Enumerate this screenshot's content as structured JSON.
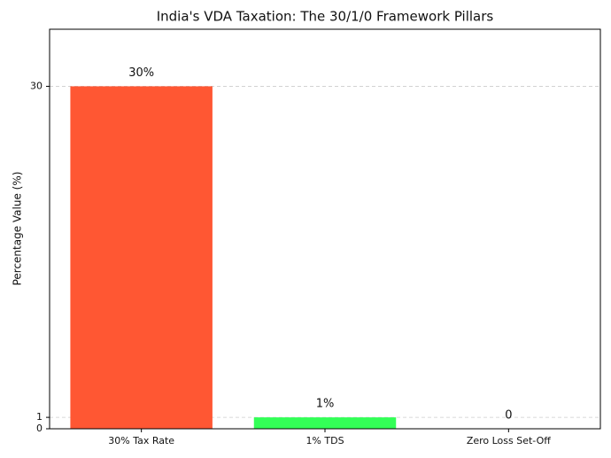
{
  "chart_data": {
    "type": "bar",
    "title": "India's VDA Taxation: The 30/1/0 Framework Pillars",
    "y_label": "Percentage Value (%)",
    "categories": [
      "30% Tax Rate",
      "1% TDS",
      "Zero Loss Set-Off"
    ],
    "values": [
      30,
      1,
      0
    ],
    "value_labels": [
      "30%",
      "1%",
      "0"
    ],
    "colors": [
      "#ff5733",
      "#33ff57",
      "#3357ff"
    ],
    "ylim": [
      0,
      35
    ],
    "yticks": [
      0,
      1,
      30
    ],
    "grid": true
  }
}
